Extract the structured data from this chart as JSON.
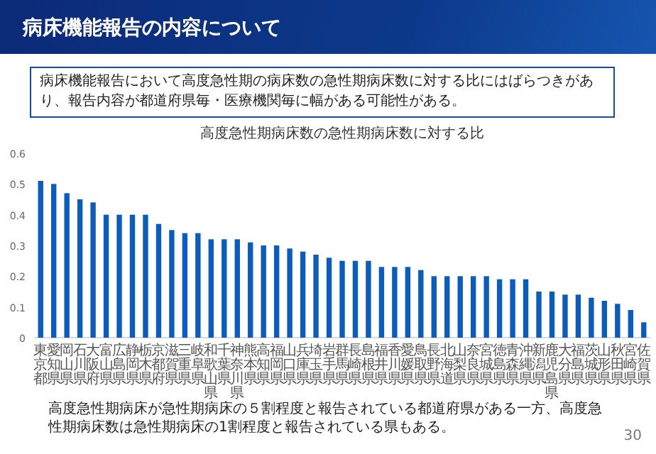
{
  "chart_data": {
    "type": "bar",
    "title": "高度急性期病床数の急性期病床数に対する比",
    "categories": [
      "東京都",
      "愛知県",
      "岡山県",
      "石川県",
      "大阪府",
      "富山県",
      "広島県",
      "静岡県",
      "栃木県",
      "京都府",
      "滋賀県",
      "三重県",
      "岐阜県",
      "和歌山県",
      "千葉県",
      "神奈川県",
      "熊本県",
      "高知県",
      "福岡県",
      "山口県",
      "兵庫県",
      "埼玉県",
      "岩手県",
      "群馬県",
      "長崎県",
      "島根県",
      "福井県",
      "香川県",
      "愛媛県",
      "鳥取県",
      "長野県",
      "北海道",
      "山梨県",
      "奈良県",
      "宮城県",
      "徳島県",
      "青森県",
      "沖縄県",
      "新潟県",
      "鹿児島県",
      "大分県",
      "福島県",
      "茨城県",
      "山形県",
      "秋田県",
      "宮崎県",
      "佐賀県"
    ],
    "values": [
      0.51,
      0.5,
      0.47,
      0.45,
      0.44,
      0.4,
      0.4,
      0.4,
      0.4,
      0.37,
      0.35,
      0.34,
      0.34,
      0.32,
      0.32,
      0.32,
      0.31,
      0.3,
      0.3,
      0.29,
      0.28,
      0.27,
      0.26,
      0.25,
      0.25,
      0.25,
      0.23,
      0.23,
      0.23,
      0.22,
      0.2,
      0.2,
      0.2,
      0.2,
      0.2,
      0.19,
      0.19,
      0.19,
      0.15,
      0.15,
      0.14,
      0.14,
      0.13,
      0.12,
      0.11,
      0.09,
      0.05
    ],
    "color": "#0a5cbf",
    "ylim": [
      0,
      0.6
    ],
    "yticks": [
      0,
      0.1,
      0.2,
      0.3,
      0.4,
      0.5,
      0.6
    ],
    "annotations": [
      "病床機能報告の内容について",
      "病床機能報告において高度急性期の病床数の急性期病床数に対する比にはばらつきがあり、報告内容が都道府県毎・医療機関毎に幅がある可能性がある。",
      "高度急性期病床が急性期病床の５割程度と報告されている都道府県がある一方、高度急性期病床数は急性期病床の1割程度と報告されている県もある。",
      "30"
    ]
  }
}
